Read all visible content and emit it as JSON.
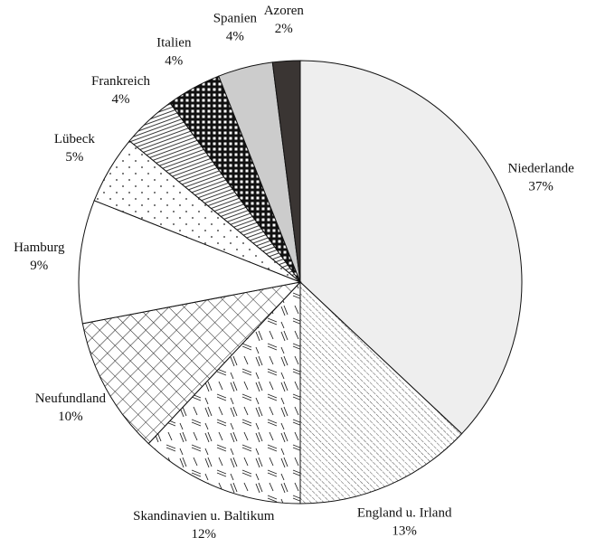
{
  "chart_data": {
    "type": "pie",
    "categories": [
      "Niederlande",
      "England u. Irland",
      "Skandinavien u. Baltikum",
      "Neufundland",
      "Hamburg",
      "Lübeck",
      "Frankreich",
      "Italien",
      "Spanien",
      "Azoren"
    ],
    "values": [
      37,
      13,
      12,
      10,
      9,
      5,
      4,
      4,
      4,
      2
    ],
    "value_labels": [
      "37%",
      "13%",
      "12%",
      "10%",
      "9%",
      "5%",
      "4%",
      "4%",
      "4%",
      "2%"
    ],
    "patterns": [
      "light-gray",
      "diagonal-lines",
      "dashes",
      "crosshatch",
      "white",
      "dots",
      "horizontal-lines",
      "checker",
      "gray",
      "dark"
    ]
  }
}
